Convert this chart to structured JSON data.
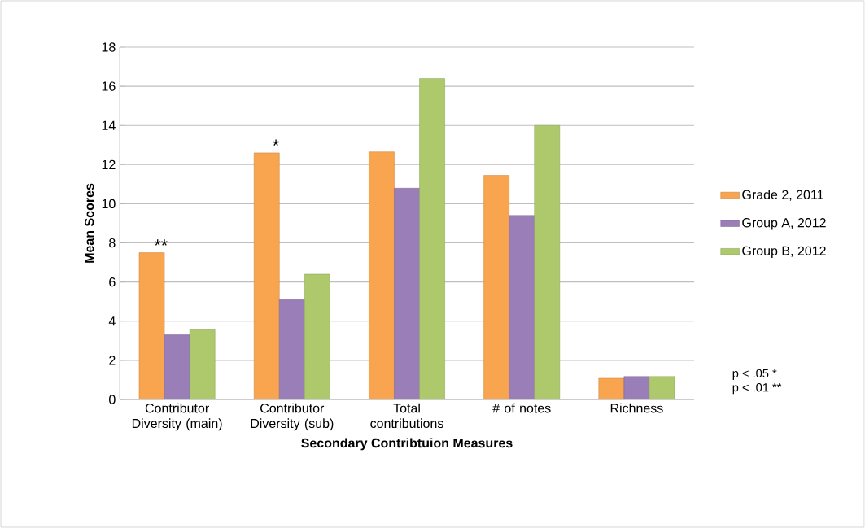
{
  "chart_data": {
    "type": "bar",
    "xlabel": "Secondary Contribtuion Measures",
    "ylabel": "Mean Scores",
    "categories": [
      "Contributor Diversity (main)",
      "Contributor Diversity (sub)",
      "Total contributions",
      "# of notes",
      "Richness"
    ],
    "series": [
      {
        "name": "Grade 2, 2011",
        "color": "#f9a54f",
        "values": [
          7.5,
          12.6,
          12.65,
          11.45,
          1.08
        ]
      },
      {
        "name": "Group A, 2012",
        "color": "#9a7eb8",
        "values": [
          3.3,
          5.1,
          10.8,
          9.4,
          1.17
        ]
      },
      {
        "name": "Group B, 2012",
        "color": "#aec96c",
        "values": [
          3.56,
          6.4,
          16.4,
          14.0,
          1.17
        ]
      }
    ],
    "ylim": [
      0,
      18
    ],
    "yticks": [
      0,
      2,
      4,
      6,
      8,
      10,
      12,
      14,
      16,
      18
    ],
    "grid": "y",
    "legend": "right",
    "annotations": [
      "**",
      "*",
      "p < .05 *",
      "p < .01 **"
    ]
  }
}
